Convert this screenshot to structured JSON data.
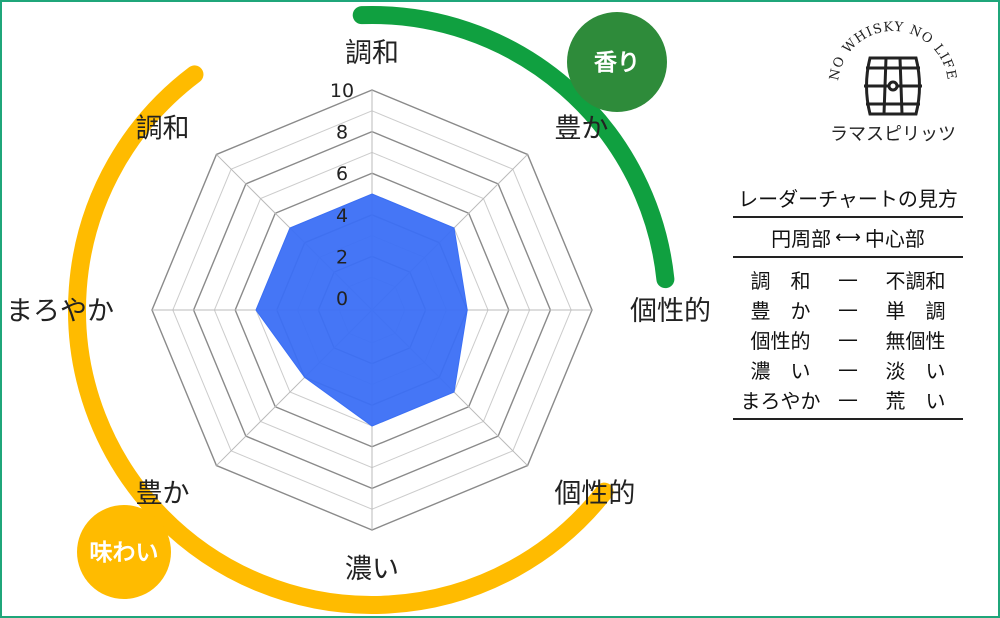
{
  "chart_data": {
    "type": "radar",
    "axes": [
      "調和",
      "豊か",
      "個性的",
      "個性的",
      "濃い",
      "豊か",
      "まろやか",
      "調和"
    ],
    "values": [
      5,
      5,
      4,
      5,
      5,
      4,
      5,
      5
    ],
    "range": [
      0,
      10
    ],
    "ticks": [
      "0",
      "2",
      "4",
      "6",
      "8",
      "10"
    ],
    "grid": true
  },
  "groups": {
    "aroma": {
      "label": "香り",
      "color": "#10a040"
    },
    "taste": {
      "label": "味わい",
      "color": "#ffbb00"
    }
  },
  "series_color": "#3b6ff5",
  "logo": {
    "arc_text": "NO WHISKY NO LIFE",
    "name": "ラマスピリッツ"
  },
  "guide": {
    "title": "レーダーチャートの見方",
    "header_left": "円周部",
    "header_arrow": "⟷",
    "header_right": "中心部",
    "rows": [
      {
        "left": "調　和",
        "dash": "—",
        "right": "不調和"
      },
      {
        "left": "豊　か",
        "dash": "—",
        "right": "単　調"
      },
      {
        "left": "個性的",
        "dash": "—",
        "right": "無個性"
      },
      {
        "left": "濃　い",
        "dash": "—",
        "right": "淡　い"
      },
      {
        "left": "まろやか",
        "dash": "—",
        "right": "荒　い"
      }
    ]
  },
  "frame_color": "#1fa67a"
}
